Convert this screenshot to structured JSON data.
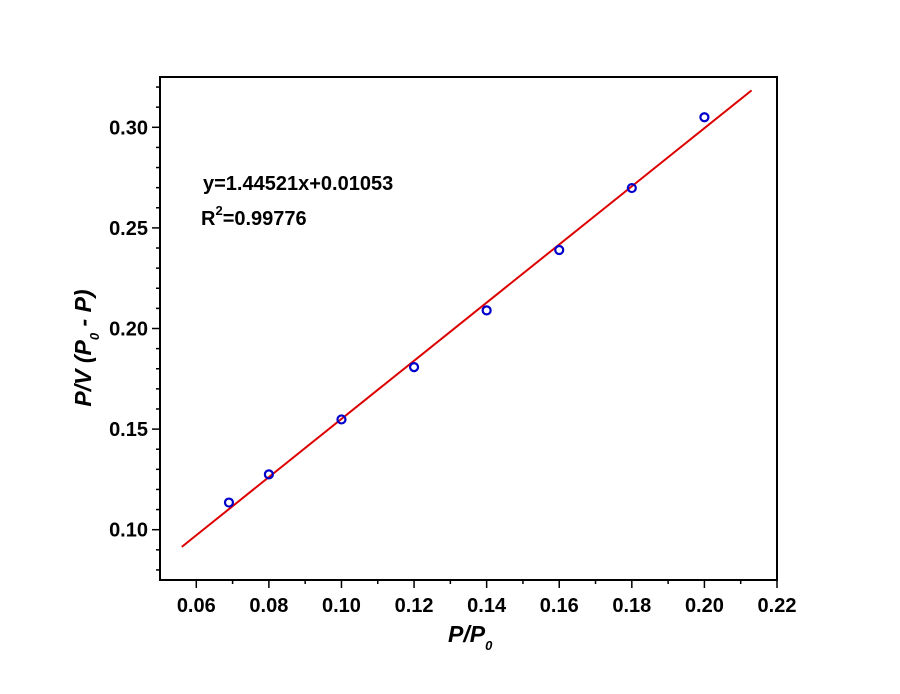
{
  "chart_data": {
    "type": "scatter",
    "title": "",
    "xlabel": {
      "main": "P/P",
      "sub": "0"
    },
    "ylabel": {
      "lead": "P/V (P",
      "sub": "0",
      "tail": " - P)"
    },
    "xlim": [
      0.05,
      0.22
    ],
    "ylim": [
      0.075,
      0.325
    ],
    "xticks": [
      0.06,
      0.08,
      0.1,
      0.12,
      0.14,
      0.16,
      0.18,
      0.2,
      0.22
    ],
    "xtick_labels": [
      "0.06",
      "0.08",
      "0.10",
      "0.12",
      "0.14",
      "0.16",
      "0.18",
      "0.20",
      "0.22"
    ],
    "yticks": [
      0.1,
      0.15,
      0.2,
      0.25,
      0.3
    ],
    "ytick_labels": [
      "0.10",
      "0.15",
      "0.20",
      "0.25",
      "0.30"
    ],
    "grid": false,
    "colors": {
      "points": "#0000cc",
      "fit": "#dd0000"
    },
    "series": [
      {
        "x": [
          0.069,
          0.08,
          0.1,
          0.12,
          0.14,
          0.16,
          0.18,
          0.2
        ],
        "y": [
          0.1135,
          0.1275,
          0.1548,
          0.1808,
          0.209,
          0.239,
          0.2698,
          0.305
        ]
      }
    ],
    "fit": {
      "slope": 1.44521,
      "intercept": 0.01053,
      "x_range": [
        0.056,
        0.213
      ]
    },
    "annotation": {
      "equation": "y=1.44521x+0.01053",
      "r2_prefix": "R",
      "r2_sup": "2",
      "r2_value": "=0.99776"
    }
  }
}
